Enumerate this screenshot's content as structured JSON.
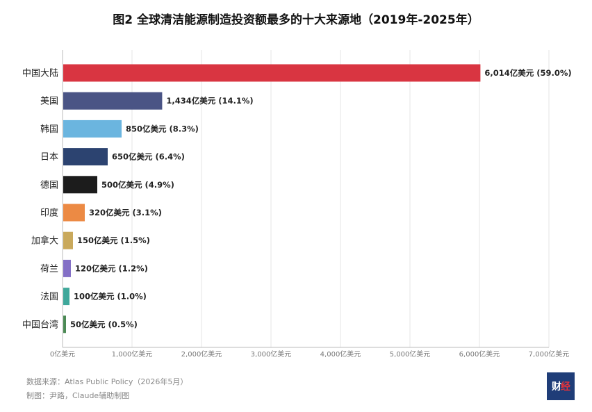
{
  "title": "图2 全球清洁能源制造投资额最多的十大来源地（2019年-2025年）",
  "chart_data": {
    "type": "bar",
    "orientation": "horizontal",
    "categories": [
      "中国大陆",
      "美国",
      "韩国",
      "日本",
      "德国",
      "印度",
      "加拿大",
      "荷兰",
      "法国",
      "中国台湾"
    ],
    "values": [
      6014,
      1434,
      850,
      650,
      500,
      320,
      150,
      120,
      100,
      50
    ],
    "data_labels": [
      "6,014亿美元 (59.0%)",
      "1,434亿美元 (14.1%)",
      "850亿美元 (8.3%)",
      "650亿美元 (6.4%)",
      "500亿美元 (4.9%)",
      "320亿美元 (3.1%)",
      "150亿美元 (1.5%)",
      "120亿美元 (1.2%)",
      "100亿美元 (1.0%)",
      "50亿美元 (0.5%)"
    ],
    "colors": [
      "#d93541",
      "#4a5485",
      "#6bb5df",
      "#2c4370",
      "#1c1c1c",
      "#ec8a44",
      "#c9a95c",
      "#8470c6",
      "#3fa89b",
      "#4c8a55"
    ],
    "xlim": [
      0,
      7000
    ],
    "xticks": [
      0,
      1000,
      2000,
      3000,
      4000,
      5000,
      6000,
      7000
    ],
    "xtick_labels": [
      "0亿美元",
      "1,000亿美元",
      "2,000亿美元",
      "3,000亿美元",
      "4,000亿美元",
      "5,000亿美元",
      "6,000亿美元",
      "7,000亿美元"
    ],
    "grid": "vertical",
    "title": "图2 全球清洁能源制造投资额最多的十大来源地（2019年-2025年）",
    "xlabel": "",
    "ylabel": ""
  },
  "footer": {
    "source": "数据来源：Atlas Public Policy（2026年5月）",
    "credit": "制图：尹路，Claude辅助制图"
  },
  "logo": {
    "text_a": "财",
    "text_b": "经"
  }
}
